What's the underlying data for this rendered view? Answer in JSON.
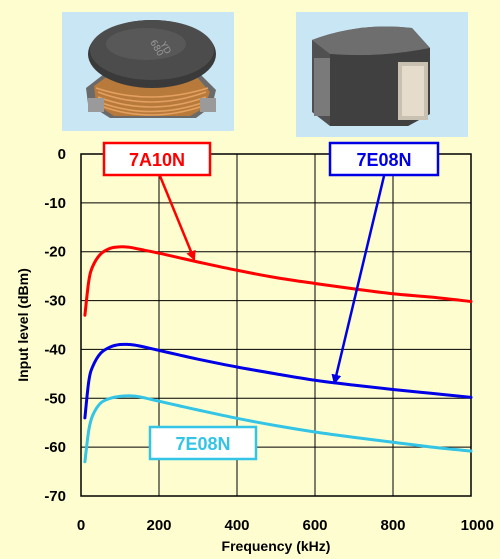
{
  "colors": {
    "background": "#fefdd0",
    "photo_background": "#c9e6f5",
    "series_7A10N": "#ff0000",
    "series_7E08N_blue": "#0000e6",
    "series_7E08N_cyan": "#33c4e6"
  },
  "photos": [
    {
      "name": "inductor-wire-wound-photo"
    },
    {
      "name": "inductor-shielded-photo"
    }
  ],
  "chart_data": {
    "type": "line",
    "title": "",
    "xlabel": "Frequency (kHz)",
    "ylabel": "Input level (dBm)",
    "xlim": [
      0,
      1000
    ],
    "ylim": [
      -70,
      0
    ],
    "xticks": [
      "0",
      "200",
      "400",
      "600",
      "800",
      "1000"
    ],
    "yticks": [
      "0",
      "-10",
      "-20",
      "-30",
      "-40",
      "-50",
      "-60",
      "-70"
    ],
    "grid": true,
    "series": [
      {
        "name": "7A10N",
        "color": "#ff0000",
        "x": [
          10,
          20,
          30,
          50,
          75,
          100,
          125,
          150,
          200,
          250,
          300,
          400,
          500,
          600,
          700,
          800,
          900,
          1000
        ],
        "y": [
          -33,
          -26,
          -23,
          -20.5,
          -19.3,
          -19,
          -19.1,
          -19.5,
          -20.3,
          -21.2,
          -22.1,
          -23.8,
          -25.3,
          -26.5,
          -27.6,
          -28.6,
          -29.3,
          -30.2
        ]
      },
      {
        "name": "7E08N",
        "color": "#0000e6",
        "x": [
          10,
          20,
          30,
          50,
          75,
          100,
          125,
          150,
          200,
          250,
          300,
          400,
          500,
          600,
          700,
          800,
          900,
          1000
        ],
        "y": [
          -54,
          -46.5,
          -43.5,
          -40.8,
          -39.5,
          -39,
          -39,
          -39.3,
          -40.2,
          -41.1,
          -42,
          -43.6,
          -45,
          -46.3,
          -47.3,
          -48.2,
          -49,
          -49.8
        ]
      },
      {
        "name": "7E08N",
        "color": "#33c4e6",
        "x": [
          10,
          20,
          30,
          50,
          75,
          100,
          125,
          150,
          200,
          250,
          300,
          400,
          500,
          600,
          700,
          800,
          900,
          1000
        ],
        "y": [
          -63,
          -56.5,
          -53.5,
          -51,
          -50,
          -49.6,
          -49.5,
          -49.7,
          -50.6,
          -51.5,
          -52.4,
          -54.1,
          -55.6,
          -56.9,
          -58,
          -59,
          -60,
          -60.8
        ]
      }
    ],
    "annotations": [
      {
        "text": "7A10N",
        "color": "#ff0000",
        "series": 0,
        "arrow_to_x": 290,
        "arrow_to_y": -21.5
      },
      {
        "text": "7E08N",
        "color": "#0000e6",
        "series": 1,
        "arrow_to_x": 650,
        "arrow_to_y": -46.8
      },
      {
        "text": "7E08N",
        "color": "#33c4e6",
        "series": 2
      }
    ]
  }
}
